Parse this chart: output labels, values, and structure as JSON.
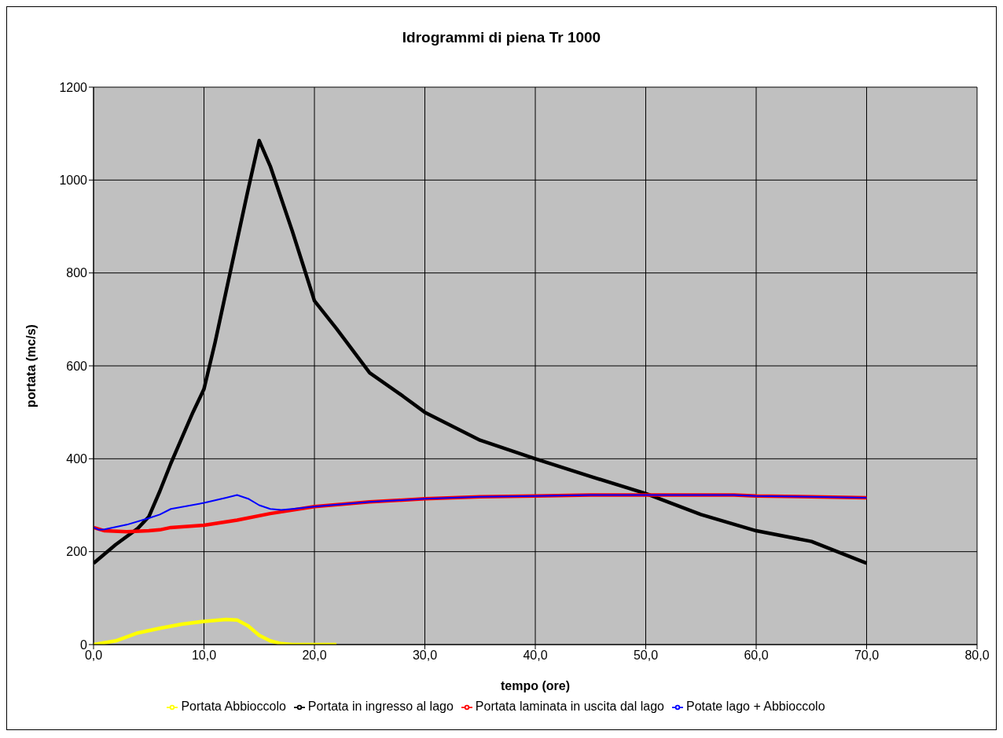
{
  "chart_data": {
    "type": "line",
    "title": "Idrogrammi di piena Tr 1000",
    "xlabel": "tempo (ore)",
    "ylabel": "portata (mc/s)",
    "xlim": [
      0,
      80
    ],
    "xticks": [
      {
        "value": 0,
        "label": "0,0"
      },
      {
        "value": 10,
        "label": "10,0"
      },
      {
        "value": 20,
        "label": "20,0"
      },
      {
        "value": 30,
        "label": "30,0"
      },
      {
        "value": 40,
        "label": "40,0"
      },
      {
        "value": 50,
        "label": "50,0"
      },
      {
        "value": 60,
        "label": "60,0"
      },
      {
        "value": 70,
        "label": "70,0"
      },
      {
        "value": 80,
        "label": "80,0"
      }
    ],
    "ylim": [
      0,
      1200
    ],
    "yticks": [
      0,
      200,
      400,
      600,
      800,
      1000,
      1200
    ],
    "grid": true,
    "legend": "bottom",
    "marker": "none",
    "line_style": "solid",
    "series": [
      {
        "name": "Portata in ingresso al lago",
        "color": "#000000",
        "x": [
          0,
          2,
          4,
          5,
          6,
          7,
          8,
          9,
          10,
          11,
          12,
          13,
          14,
          15,
          16,
          17,
          18,
          19,
          20,
          22,
          25,
          28,
          30,
          35,
          40,
          45,
          50,
          55,
          60,
          65,
          70
        ],
        "values": [
          175,
          215,
          250,
          275,
          330,
          390,
          445,
          500,
          550,
          650,
          760,
          870,
          980,
          1085,
          1030,
          960,
          890,
          815,
          740,
          680,
          585,
          535,
          500,
          440,
          400,
          362,
          325,
          280,
          245,
          222,
          175
        ]
      },
      {
        "name": "Portata Abbioccolo",
        "color": "#ffff00",
        "x": [
          0,
          2,
          4,
          6,
          8,
          10,
          12,
          13,
          14,
          15,
          16,
          17,
          18,
          20,
          22
        ],
        "values": [
          0,
          8,
          25,
          35,
          44,
          50,
          54,
          53,
          40,
          20,
          8,
          2,
          0,
          0,
          0
        ]
      },
      {
        "name": "Portata laminata in uscita dal lago",
        "color": "#ff0000",
        "x": [
          0,
          1,
          3,
          5,
          6,
          7,
          10,
          13,
          16,
          20,
          25,
          30,
          35,
          40,
          45,
          58,
          60,
          65,
          70
        ],
        "values": [
          252,
          245,
          243,
          245,
          247,
          252,
          257,
          268,
          282,
          297,
          307,
          314,
          318,
          320,
          322,
          322,
          320,
          318,
          316
        ]
      },
      {
        "name": "Potate lago + Abbioccolo",
        "color": "#0000ff",
        "x": [
          0,
          0.5,
          1,
          3,
          5,
          6,
          7,
          10,
          12,
          13,
          14,
          15,
          16,
          17,
          18,
          20,
          25,
          30,
          35,
          40,
          45,
          58,
          60,
          65,
          70
        ],
        "values": [
          252,
          247,
          248,
          258,
          272,
          280,
          292,
          305,
          316,
          322,
          314,
          300,
          292,
          290,
          292,
          297,
          307,
          314,
          318,
          320,
          322,
          322,
          320,
          318,
          316
        ]
      }
    ]
  }
}
